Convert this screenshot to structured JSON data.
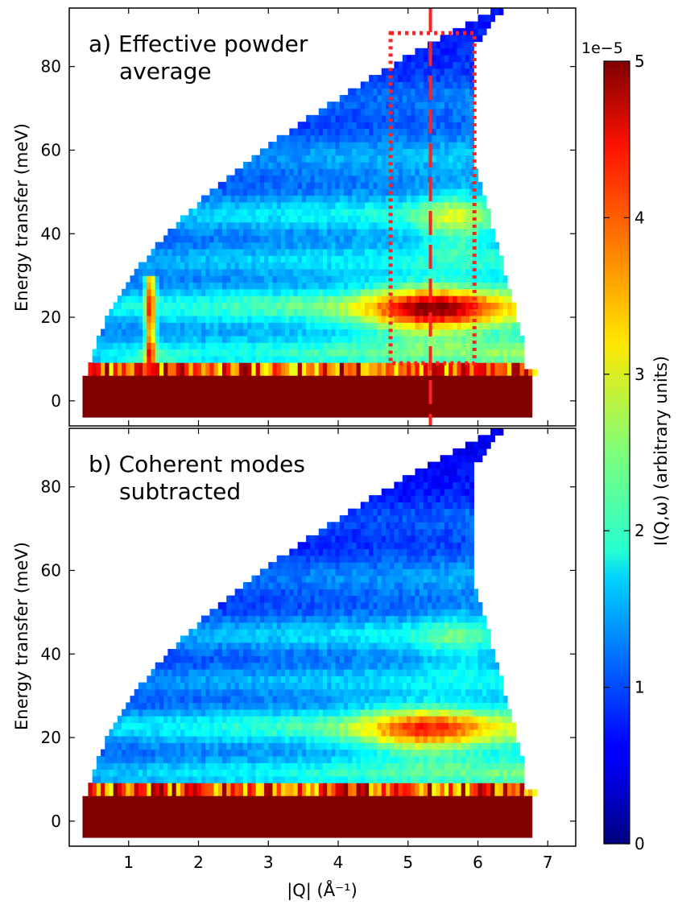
{
  "chart_data": {
    "type": "heatmap",
    "xlabel": "|Q| (Å⁻¹)",
    "x_ticks": [
      "1",
      "2",
      "3",
      "4",
      "5",
      "6",
      "7"
    ],
    "xlim": [
      0.15,
      7.4
    ],
    "colorbar": {
      "label": "I(Q,ω) (arbitrary units)",
      "exponent_label": "1e−5",
      "range": [
        0,
        5
      ],
      "ticks": [
        "0",
        "1",
        "2",
        "3",
        "4",
        "5"
      ],
      "colormap": "jet"
    },
    "panels": [
      {
        "label_line1": "a) Effective powder",
        "label_line2": "average",
        "ylabel": "Energy transfer (meV)",
        "y_ticks": [
          "0",
          "20",
          "40",
          "60",
          "80"
        ],
        "ylim": [
          -6,
          94
        ],
        "elastic_band_meV": [
          -4,
          6
        ],
        "mode_bands_meV": [
          6,
          11,
          22,
          33,
          44,
          58,
          72,
          85
        ],
        "hot_spot": {
          "q": 5.3,
          "e": 21,
          "intensity": 4.5
        },
        "q_cut_line": 5.32,
        "integration_box": {
          "q": [
            4.75,
            5.95
          ],
          "e": [
            9,
            88
          ]
        }
      },
      {
        "label_line1": "b) Coherent modes",
        "label_line2": "subtracted",
        "ylabel": "Energy transfer (meV)",
        "y_ticks": [
          "0",
          "20",
          "40",
          "60",
          "80"
        ],
        "ylim": [
          -6,
          94
        ],
        "elastic_band_meV": [
          -4,
          6
        ],
        "mode_bands_meV": [
          6,
          11,
          22,
          33,
          44,
          58,
          72,
          85
        ],
        "hot_spot": {
          "q": 5.2,
          "e": 21,
          "intensity": 3.9
        }
      }
    ]
  },
  "colors": {
    "box_line": "#ff2020",
    "elastic": "#800000"
  }
}
